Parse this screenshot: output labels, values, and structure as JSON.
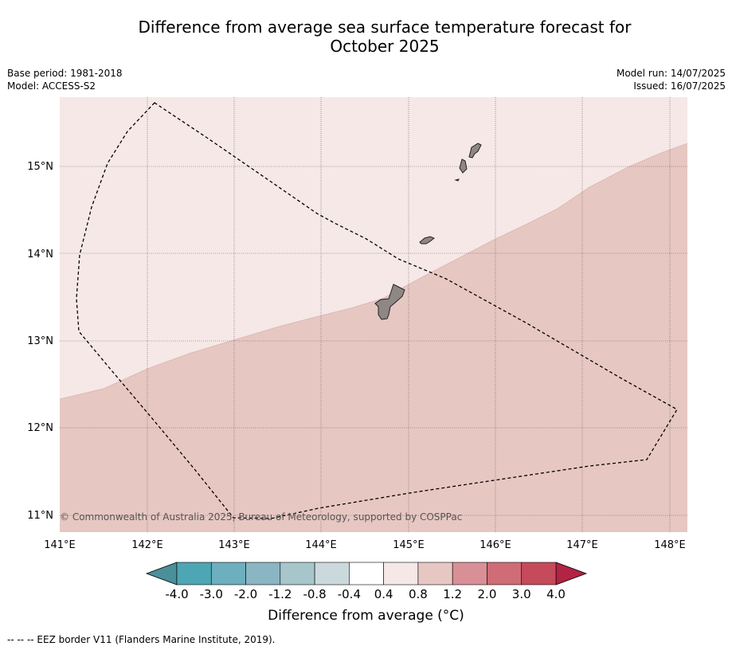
{
  "title_line1": "Difference from average sea surface temperature forecast for",
  "title_line2": "October 2025",
  "meta": {
    "base_period": "Base period: 1981-2018",
    "model": "Model: ACCESS-S2",
    "model_run": "Model run: 14/07/2025",
    "issued": "Issued: 16/07/2025"
  },
  "copyright": "© Commonwealth of Australia 2025, Bureau of Meteorology, supported by COSPPac",
  "lon_labels": [
    "141°E",
    "142°E",
    "143°E",
    "144°E",
    "145°E",
    "146°E",
    "147°E",
    "148°E"
  ],
  "lat_labels": [
    "15°N",
    "14°N",
    "13°N",
    "12°N",
    "11°N"
  ],
  "colorbar": {
    "title": "Difference from average (°C)",
    "tick_labels": [
      "-4.0",
      "-3.0",
      "-2.0",
      "-1.2",
      "-0.8",
      "-0.4",
      "0.4",
      "0.8",
      "1.2",
      "2.0",
      "3.0",
      "4.0"
    ],
    "colors": [
      "#4a8f9a",
      "#4ca6b4",
      "#6dafbe",
      "#8ab5c2",
      "#a7c6cb",
      "#cbd9dc",
      "#ffffff",
      "#f5e8e7",
      "#e7c7c2",
      "#d98f96",
      "#cf6c76",
      "#c54a5a",
      "#b22344"
    ]
  },
  "map": {
    "classes": {
      "lower": "0.8 to 1.2",
      "upper": "0.4 to 0.8"
    },
    "colors": {
      "lower": "#e7c7c2",
      "upper": "#f5e8e7",
      "land": "#8f8785"
    }
  },
  "footnote": "--  --  -- EEZ border V11 (Flanders Marine Institute, 2019)."
}
